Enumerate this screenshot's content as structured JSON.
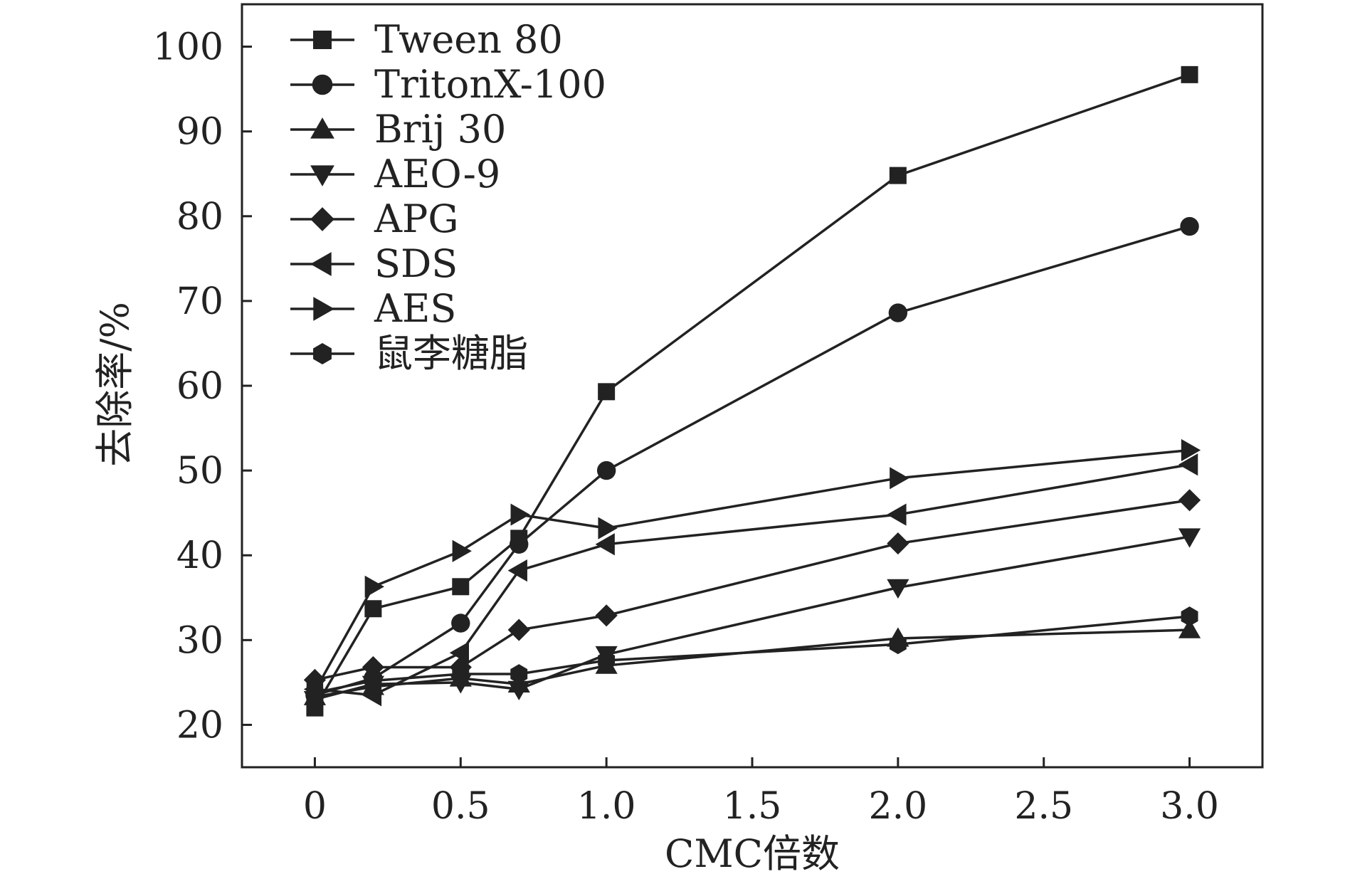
{
  "chart_data": {
    "type": "line",
    "title": "",
    "xlabel": "CMC倍数",
    "ylabel": "去除率/%",
    "x": [
      0,
      0.2,
      0.5,
      0.7,
      1.0,
      2.0,
      3.0
    ],
    "xlim": [
      -0.25,
      3.25
    ],
    "ylim": [
      15,
      105
    ],
    "xticks": [
      0,
      0.5,
      1.0,
      1.5,
      2.0,
      2.5,
      3.0
    ],
    "xtick_labels": [
      "0",
      "0.5",
      "1.0",
      "1.5",
      "2.0",
      "2.5",
      "3.0"
    ],
    "yticks": [
      20,
      30,
      40,
      50,
      60,
      70,
      80,
      90,
      100
    ],
    "ytick_labels": [
      "20",
      "30",
      "40",
      "50",
      "60",
      "70",
      "80",
      "90",
      "100"
    ],
    "grid": false,
    "legend_position": "top-left",
    "color": "#222222",
    "series": [
      {
        "name": "Tween 80",
        "marker": "square",
        "values": [
          22.0,
          33.7,
          36.3,
          42.0,
          59.3,
          84.8,
          96.7
        ]
      },
      {
        "name": "TritonX-100",
        "marker": "circle",
        "values": [
          23.5,
          25.5,
          32.0,
          41.3,
          50.0,
          68.6,
          78.8
        ]
      },
      {
        "name": "Brij 30",
        "marker": "triangle-up",
        "values": [
          23.3,
          24.5,
          25.5,
          24.8,
          27.0,
          30.2,
          31.2
        ]
      },
      {
        "name": "AEO-9",
        "marker": "triangle-down",
        "values": [
          23.0,
          24.8,
          25.0,
          24.2,
          28.3,
          36.2,
          42.2
        ]
      },
      {
        "name": "APG",
        "marker": "diamond",
        "values": [
          25.3,
          26.8,
          26.8,
          31.2,
          32.9,
          41.4,
          46.5
        ]
      },
      {
        "name": "SDS",
        "marker": "triangle-left",
        "values": [
          24.2,
          23.5,
          28.5,
          38.2,
          41.3,
          44.8,
          50.7
        ]
      },
      {
        "name": "AES",
        "marker": "triangle-right",
        "values": [
          24.0,
          36.3,
          40.5,
          44.8,
          43.2,
          49.1,
          52.4
        ]
      },
      {
        "name": "鼠李糖脂",
        "marker": "hexagon",
        "values": [
          23.8,
          25.2,
          26.0,
          26.0,
          27.6,
          29.5,
          32.8
        ]
      }
    ]
  }
}
